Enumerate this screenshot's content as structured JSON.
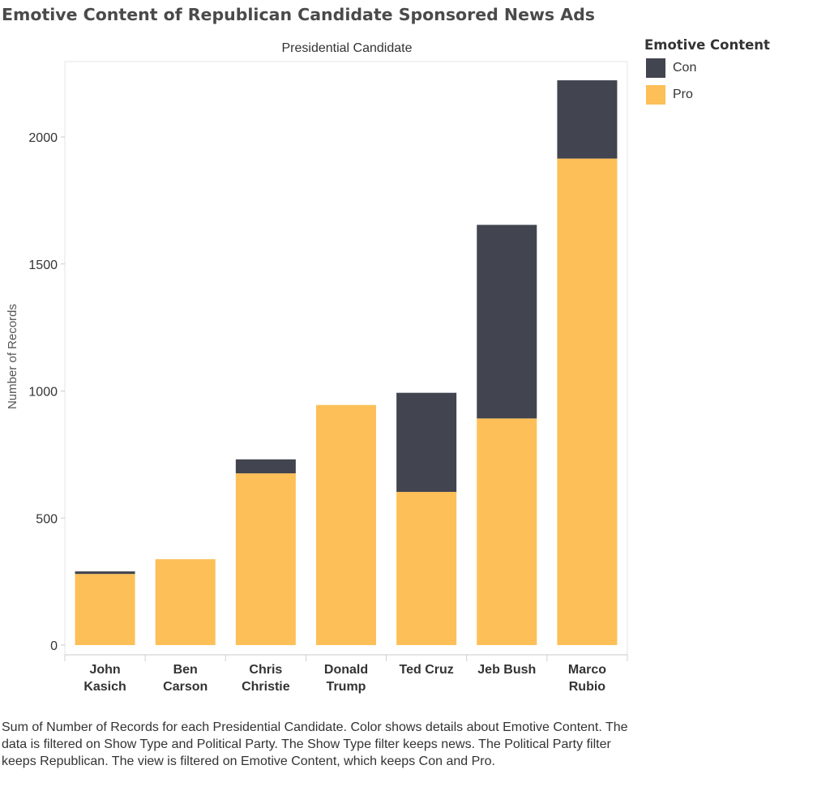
{
  "title": "Emotive Content of Republican Candidate Sponsored News Ads",
  "legend": {
    "title": "Emotive Content",
    "items": [
      {
        "label": "Con",
        "color": "#42444f"
      },
      {
        "label": "Pro",
        "color": "#fdbf57"
      }
    ]
  },
  "caption": "Sum of Number of Records for each Presidential Candidate.  Color shows details about Emotive Content. The data is filtered on Show Type and Political Party. The Show Type filter keeps news. The Political Party filter keeps Republican. The view is filtered on Emotive Content, which keeps Con and Pro.",
  "chart_data": {
    "type": "bar",
    "stacked": true,
    "title": "Emotive Content of Republican Candidate Sponsored News Ads",
    "header": "Presidential Candidate",
    "xlabel": "",
    "ylabel": "Number of Records",
    "ylim": [
      0,
      2300
    ],
    "yticks": [
      0,
      500,
      1000,
      1500,
      2000
    ],
    "grid": false,
    "legend_position": "right",
    "categories": [
      [
        "John",
        "Kasich"
      ],
      [
        "Ben",
        "Carson"
      ],
      [
        "Chris",
        "Christie"
      ],
      [
        "Donald",
        "Trump"
      ],
      [
        "Ted Cruz"
      ],
      [
        "Jeb Bush"
      ],
      [
        "Marco",
        "Rubio"
      ]
    ],
    "series": [
      {
        "name": "Pro",
        "color": "#fdbf57",
        "values": [
          280,
          338,
          676,
          945,
          603,
          892,
          1915
        ]
      },
      {
        "name": "Con",
        "color": "#42444f",
        "values": [
          10,
          0,
          55,
          0,
          390,
          762,
          308
        ]
      }
    ]
  }
}
